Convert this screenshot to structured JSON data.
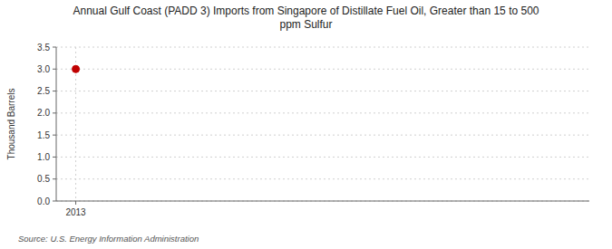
{
  "chart_data": {
    "type": "scatter",
    "title": "Annual Gulf Coast (PADD 3) Imports from Singapore of Distillate Fuel Oil, Greater than 15 to 500\nppm Sulfur",
    "ylabel": "Thousand Barrels",
    "source": "Source: U.S. Energy Information Administration",
    "x": [
      2013
    ],
    "values": [
      3.0
    ],
    "color": "#c00000",
    "marker": "circle",
    "xlim": [
      2012.6,
      2023.5
    ],
    "xticks": [
      2013
    ],
    "ylim": [
      0.0,
      3.5
    ],
    "yticks": [
      {
        "value": 0.0,
        "label": "0.0"
      },
      {
        "value": 0.5,
        "label": "0.5"
      },
      {
        "value": 1.0,
        "label": "1.0"
      },
      {
        "value": 1.5,
        "label": "1.5"
      },
      {
        "value": 2.0,
        "label": "2.0"
      },
      {
        "value": 2.5,
        "label": "2.5"
      },
      {
        "value": 3.0,
        "label": "3.0"
      },
      {
        "value": 3.5,
        "label": "3.5"
      }
    ],
    "grid": true
  }
}
